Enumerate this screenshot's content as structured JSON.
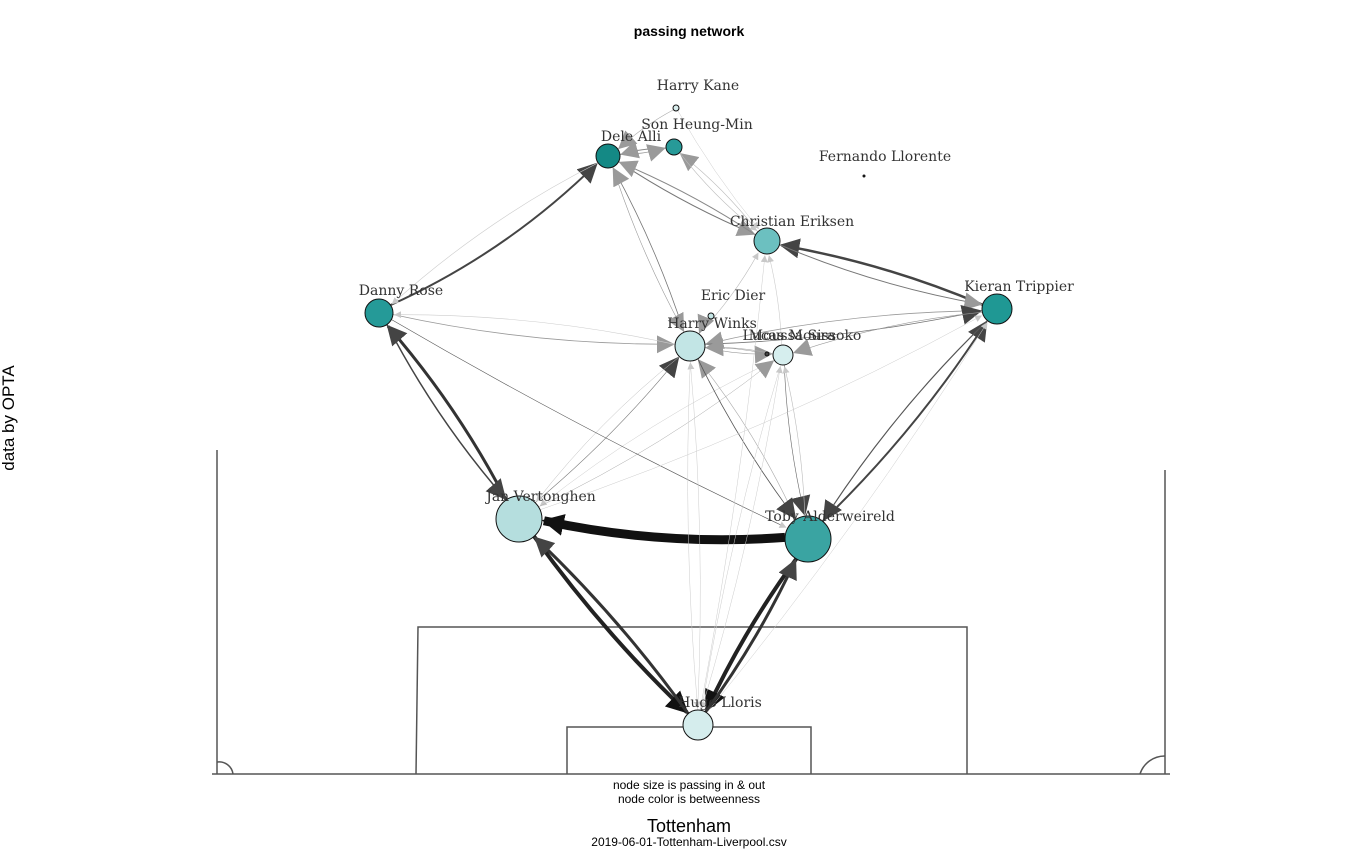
{
  "title": "passing network",
  "side_label": "data by OPTA",
  "captions": [
    "node size is passing in & out",
    "node color is betweenness"
  ],
  "team": "Tottenham",
  "file": "2019-06-01-Tottenham-Liverpool.csv",
  "players": [
    {
      "id": "kane",
      "name": "Harry Kane",
      "color": "#d9eeee"
    },
    {
      "id": "son",
      "name": "Son Heung-Min",
      "color": "#279a98"
    },
    {
      "id": "alli",
      "name": "Dele Alli",
      "color": "#148985"
    },
    {
      "id": "llorente",
      "name": "Fernando Llorente",
      "color": "#333333"
    },
    {
      "id": "eriksen",
      "name": "Christian Eriksen",
      "color": "#6cc0c0"
    },
    {
      "id": "rose",
      "name": "Danny Rose",
      "color": "#259a98"
    },
    {
      "id": "trippier",
      "name": "Kieran Trippier",
      "color": "#1f9894"
    },
    {
      "id": "dier",
      "name": "Eric Dier",
      "color": "#c5e6e6"
    },
    {
      "id": "winks",
      "name": "Harry Winks",
      "color": "#c2e5e5"
    },
    {
      "id": "moura",
      "name": "Lucas Moura",
      "color": "#444444"
    },
    {
      "id": "sissoko",
      "name": "Moussa Sissoko",
      "color": "#d6eeee"
    },
    {
      "id": "vertonghen",
      "name": "Jan Vertonghen",
      "color": "#b5dede"
    },
    {
      "id": "alderweireld",
      "name": "Toby Alderweireld",
      "color": "#3aa4a2"
    },
    {
      "id": "lloris",
      "name": "Hugo Lloris",
      "color": "#d5eded"
    }
  ]
}
